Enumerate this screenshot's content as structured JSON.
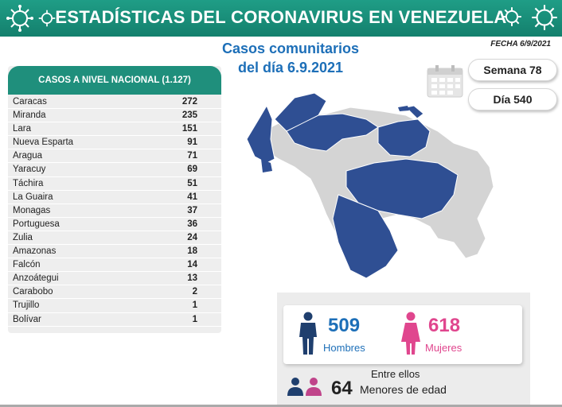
{
  "banner": {
    "title": "ESTADÍSTICAS DEL CORONAVIRUS EN VENEZUELA"
  },
  "headline": {
    "line1": "Casos comunitarios",
    "line2": "del día 6.9.2021"
  },
  "fecha": "FECHA 6/9/2021",
  "semana": "Semana 78",
  "dia": "Día 540",
  "table": {
    "header": "CASOS A NIVEL NACIONAL (1.127)",
    "rows": [
      {
        "name": "Caracas",
        "value": "272"
      },
      {
        "name": "Miranda",
        "value": "235"
      },
      {
        "name": "Lara",
        "value": "151"
      },
      {
        "name": "Nueva Esparta",
        "value": "91"
      },
      {
        "name": "Aragua",
        "value": "71"
      },
      {
        "name": "Yaracuy",
        "value": "69"
      },
      {
        "name": "Táchira",
        "value": "51"
      },
      {
        "name": "La Guaira",
        "value": "41"
      },
      {
        "name": "Monagas",
        "value": "37"
      },
      {
        "name": "Portuguesa",
        "value": "36"
      },
      {
        "name": "Zulia",
        "value": "24"
      },
      {
        "name": "Amazonas",
        "value": "18"
      },
      {
        "name": "Falcón",
        "value": "14"
      },
      {
        "name": "Anzoátegui",
        "value": "13"
      },
      {
        "name": "Carabobo",
        "value": "2"
      },
      {
        "name": "Trujillo",
        "value": "1"
      },
      {
        "name": "Bolívar",
        "value": "1"
      }
    ]
  },
  "stats": {
    "hombres_num": "509",
    "hombres_label": "Hombres",
    "mujeres_num": "618",
    "mujeres_label": "Mujeres",
    "entre": "Entre ellos",
    "menores_num": "64",
    "menores_label": "Menores de edad"
  },
  "colors": {
    "banner": "#1a9079",
    "headline": "#1d6fb8",
    "map_highlight": "#2f4f93",
    "map_base": "#d4d4d4",
    "hombres": "#1d6fb8",
    "mujeres": "#e0468e"
  },
  "icons": [
    "virus-icon",
    "calendar-icon",
    "man-icon",
    "woman-icon",
    "people-icon"
  ]
}
